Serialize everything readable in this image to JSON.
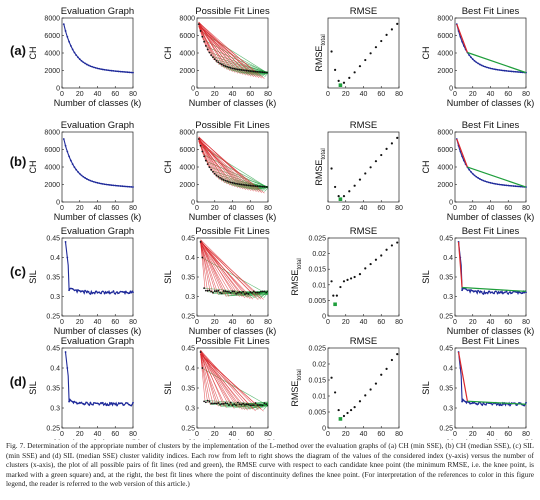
{
  "caption": {
    "label": "Fig. 7.",
    "text": "Determination of the appropriate number of clusters by the implementation of the L-method over the evaluation graphs of (a) CH (min SSE), (b) CH (median SSE), (c) SIL (min SSE) and (d) SIL (median SSE) cluster validity indices. Each row from left to right shows the diagram of the values of the considered index (y-axis) versus the number of clusters (x-axis), the plot of all possible pairs of fit lines (red and green), the RMSE curve with respect to each candidate knee point (the minimum RMSE, i.e. the knee point, is marked with a green square) and, at the right, the best fit lines where the point of discontinuity defines the knee point. (For interpretation of the references to color in this figure legend, the reader is referred to the web version of this article.)"
  },
  "colors": {
    "data": "#1f2a9a",
    "fit_red": "#d9262b",
    "fit_green": "#1f9e3c",
    "rmse": "#111111",
    "knee": "#1f9e3c"
  },
  "chart_data": [
    {
      "row": "(a)",
      "type": "line",
      "panel": "evaluation",
      "title": "Evaluation Graph",
      "xlabel": "Number of classes (k)",
      "ylabel": "CH",
      "xlim": [
        0,
        80
      ],
      "ylim": [
        0,
        8000
      ],
      "xticks": [
        "0",
        "20",
        "40",
        "60",
        "80"
      ],
      "yticks": [
        "0",
        "2000",
        "4000",
        "6000",
        "8000"
      ],
      "index": "CH (min SSE)",
      "x_range": [
        2,
        80
      ],
      "y_start": 7300,
      "y_end": 1750
    },
    {
      "row": "(a)",
      "type": "line",
      "panel": "fit_lines",
      "title": "Possible Fit Lines",
      "xlabel": "Number of classes (k)",
      "ylabel": "CH",
      "xlim": [
        0,
        80
      ],
      "ylim": [
        0,
        8000
      ],
      "xticks": [
        "0",
        "20",
        "40",
        "60",
        "80"
      ],
      "yticks": [
        "0",
        "2000",
        "4000",
        "6000",
        "8000"
      ]
    },
    {
      "row": "(a)",
      "type": "scatter",
      "panel": "rmse",
      "title": "RMSE",
      "ylabel": "RMSE_total",
      "xlim": [
        0,
        80
      ],
      "xticks": [
        "0",
        "20",
        "40",
        "60",
        "80"
      ],
      "knee_k": 14,
      "x": [
        4,
        8,
        12,
        14,
        18,
        24,
        30,
        36,
        42,
        48,
        54,
        60,
        66,
        72,
        78
      ],
      "y": [
        0.55,
        0.25,
        0.07,
        0.0,
        0.04,
        0.12,
        0.21,
        0.31,
        0.41,
        0.52,
        0.62,
        0.72,
        0.82,
        0.91,
        1.0
      ]
    },
    {
      "row": "(a)",
      "type": "line",
      "panel": "best_fit",
      "title": "Best Fit Lines",
      "xlabel": "Number of classes (k)",
      "ylabel": "CH",
      "xlim": [
        0,
        80
      ],
      "ylim": [
        0,
        8000
      ],
      "xticks": [
        "0",
        "20",
        "40",
        "60",
        "80"
      ],
      "yticks": [
        "0",
        "2000",
        "4000",
        "6000",
        "8000"
      ]
    },
    {
      "row": "(b)",
      "type": "line",
      "panel": "evaluation",
      "title": "Evaluation Graph",
      "xlabel": "Number of classes (k)",
      "ylabel": "CH",
      "xlim": [
        0,
        80
      ],
      "ylim": [
        0,
        8000
      ],
      "xticks": [
        "0",
        "20",
        "40",
        "60",
        "80"
      ],
      "yticks": [
        "0",
        "2000",
        "4000",
        "6000",
        "8000"
      ],
      "index": "CH (median SSE)",
      "x_range": [
        2,
        80
      ],
      "y_start": 7200,
      "y_end": 1700
    },
    {
      "row": "(b)",
      "type": "line",
      "panel": "fit_lines",
      "title": "Possible Fit Lines",
      "xlabel": "Number of classes (k)",
      "ylabel": "CH",
      "xlim": [
        0,
        80
      ],
      "ylim": [
        0,
        8000
      ],
      "xticks": [
        "0",
        "20",
        "40",
        "60",
        "80"
      ],
      "yticks": [
        "0",
        "2000",
        "4000",
        "6000",
        "8000"
      ]
    },
    {
      "row": "(b)",
      "type": "scatter",
      "panel": "rmse",
      "title": "RMSE",
      "ylabel": "RMSE_total",
      "xlim": [
        0,
        80
      ],
      "xticks": [
        "0",
        "20",
        "40",
        "60",
        "80"
      ],
      "knee_k": 14,
      "x": [
        4,
        8,
        12,
        14,
        18,
        24,
        30,
        36,
        42,
        48,
        54,
        60,
        66,
        72,
        78
      ],
      "y": [
        0.5,
        0.2,
        0.05,
        0.0,
        0.05,
        0.13,
        0.22,
        0.32,
        0.42,
        0.52,
        0.62,
        0.72,
        0.82,
        0.91,
        1.0
      ]
    },
    {
      "row": "(b)",
      "type": "line",
      "panel": "best_fit",
      "title": "Best Fit Lines",
      "xlabel": "Number of classes (k)",
      "ylabel": "CH",
      "xlim": [
        0,
        80
      ],
      "ylim": [
        0,
        8000
      ],
      "xticks": [
        "0",
        "20",
        "40",
        "60",
        "80"
      ],
      "yticks": [
        "0",
        "2000",
        "4000",
        "6000",
        "8000"
      ]
    },
    {
      "row": "(c)",
      "type": "line",
      "panel": "evaluation",
      "title": "Evaluation Graph",
      "xlabel": "Number of classes (k)",
      "ylabel": "SIL",
      "xlim": [
        0,
        80
      ],
      "ylim": [
        0.25,
        0.45
      ],
      "xticks": [
        "0",
        "20",
        "40",
        "60",
        "80"
      ],
      "yticks": [
        "0.25",
        "0.3",
        "0.35",
        "0.4",
        "0.45"
      ],
      "index": "SIL (min SSE)",
      "x_range": [
        4,
        80
      ]
    },
    {
      "row": "(c)",
      "type": "line",
      "panel": "fit_lines",
      "title": "Possible Fit Lines",
      "xlabel": "Number of classes (k)",
      "ylabel": "SIL",
      "xlim": [
        0,
        80
      ],
      "ylim": [
        0.25,
        0.45
      ],
      "xticks": [
        "0",
        "20",
        "40",
        "60",
        "80"
      ],
      "yticks": [
        "0.25",
        "0.3",
        "0.35",
        "0.4",
        "0.45"
      ]
    },
    {
      "row": "(c)",
      "type": "scatter",
      "panel": "rmse",
      "title": "RMSE",
      "ylabel": "RMSE_total",
      "xlim": [
        0,
        80
      ],
      "ylim": [
        0,
        0.025
      ],
      "xticks": [
        "0",
        "20",
        "40",
        "60",
        "80"
      ],
      "yticks": [
        "0",
        "0.005",
        "0.01",
        "0.015",
        "0.02",
        "0.025"
      ],
      "knee_k": 8,
      "x": [
        4,
        6,
        8,
        10,
        14,
        18,
        22,
        26,
        30,
        36,
        42,
        48,
        54,
        60,
        66,
        72,
        78
      ],
      "y": [
        0.011,
        0.006,
        0.003,
        0.006,
        0.009,
        0.011,
        0.0115,
        0.012,
        0.0125,
        0.0135,
        0.0155,
        0.017,
        0.0185,
        0.02,
        0.022,
        0.0235,
        0.0245
      ]
    },
    {
      "row": "(c)",
      "type": "line",
      "panel": "best_fit",
      "title": "Best Fit Lines",
      "xlabel": "Number of classes (k)",
      "ylabel": "SIL",
      "xlim": [
        0,
        80
      ],
      "ylim": [
        0.25,
        0.45
      ],
      "xticks": [
        "0",
        "20",
        "40",
        "60",
        "80"
      ],
      "yticks": [
        "0.25",
        "0.3",
        "0.35",
        "0.4",
        "0.45"
      ]
    },
    {
      "row": "(d)",
      "type": "line",
      "panel": "evaluation",
      "title": "Evaluation Graph",
      "xlabel": "Number of classes (k)",
      "ylabel": "SIL",
      "xlim": [
        0,
        80
      ],
      "ylim": [
        0.25,
        0.45
      ],
      "xticks": [
        "0",
        "20",
        "40",
        "60",
        "80"
      ],
      "yticks": [
        "0.25",
        "0.3",
        "0.35",
        "0.4",
        "0.45"
      ],
      "index": "SIL (median SSE)",
      "x_range": [
        4,
        80
      ]
    },
    {
      "row": "(d)",
      "type": "line",
      "panel": "fit_lines",
      "title": "Possible Fit Lines",
      "xlabel": "Number of classes (k)",
      "ylabel": "SIL",
      "xlim": [
        0,
        80
      ],
      "ylim": [
        0.25,
        0.45
      ],
      "xticks": [
        "0",
        "20",
        "40",
        "60",
        "80"
      ],
      "yticks": [
        "0.25",
        "0.3",
        "0.35",
        "0.4",
        "0.45"
      ]
    },
    {
      "row": "(d)",
      "type": "scatter",
      "panel": "rmse",
      "title": "RMSE",
      "ylabel": "RMSE_total",
      "xlim": [
        0,
        80
      ],
      "ylim": [
        0,
        0.025
      ],
      "xticks": [
        "0",
        "20",
        "40",
        "60",
        "80"
      ],
      "yticks": [
        "0",
        "0.005",
        "0.01",
        "0.015",
        "0.02",
        "0.025"
      ],
      "knee_k": 14,
      "x": [
        4,
        8,
        12,
        14,
        18,
        22,
        26,
        30,
        36,
        42,
        48,
        54,
        60,
        66,
        72,
        78
      ],
      "y": [
        0.016,
        0.011,
        0.005,
        0.002,
        0.003,
        0.004,
        0.005,
        0.006,
        0.008,
        0.01,
        0.012,
        0.014,
        0.017,
        0.019,
        0.022,
        0.024
      ]
    },
    {
      "row": "(d)",
      "type": "line",
      "panel": "best_fit",
      "title": "Best Fit Lines",
      "xlabel": "Number of classes (k)",
      "ylabel": "SIL",
      "xlim": [
        0,
        80
      ],
      "ylim": [
        0.25,
        0.45
      ],
      "xticks": [
        "0",
        "20",
        "40",
        "60",
        "80"
      ],
      "yticks": [
        "0.25",
        "0.3",
        "0.35",
        "0.4",
        "0.45"
      ]
    }
  ]
}
